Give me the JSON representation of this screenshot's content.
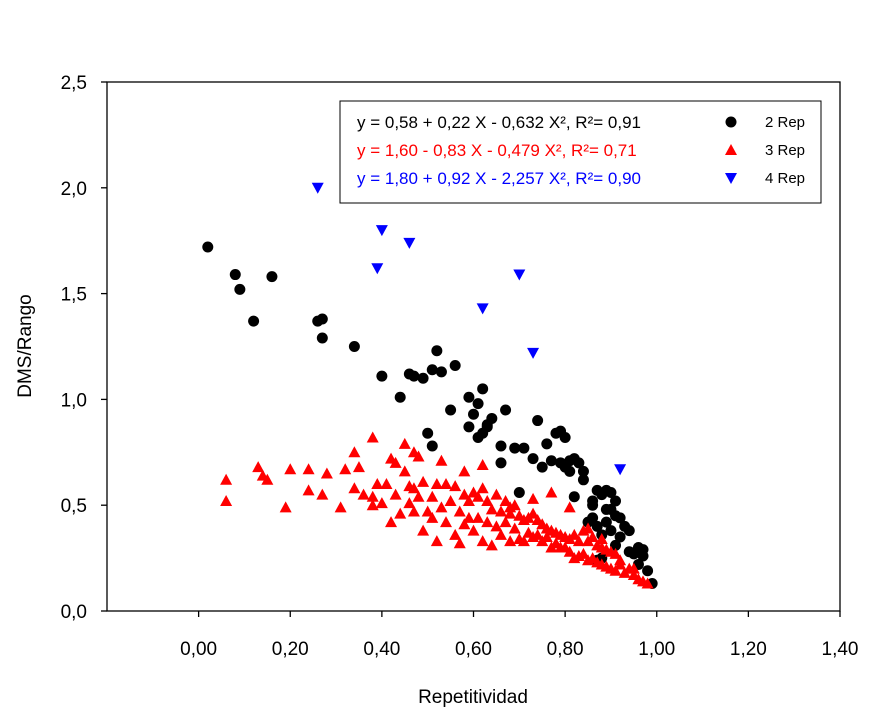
{
  "chart_data": {
    "type": "scatter",
    "xlabel": "Repetitividad",
    "ylabel": "DMS/Rango",
    "xlim": [
      -0.2,
      1.4
    ],
    "ylim": [
      0.0,
      2.5
    ],
    "x_ticks": [
      "0,00",
      "0,20",
      "0,40",
      "0,60",
      "0,80",
      "1,00",
      "1,20",
      "1,40"
    ],
    "x_tick_values": [
      0.0,
      0.2,
      0.4,
      0.6,
      0.8,
      1.0,
      1.2,
      1.4
    ],
    "y_ticks": [
      "0,0",
      "0,5",
      "1,0",
      "1,5",
      "2,0",
      "2,5"
    ],
    "y_tick_values": [
      0.0,
      0.5,
      1.0,
      1.5,
      2.0,
      2.5
    ],
    "grid": false,
    "legend_placement": "top-right",
    "series": [
      {
        "name": "2 Rep",
        "equation": "y = 0,58 + 0,22 X - 0,632 X², R²= 0,91",
        "color": "#000000",
        "marker": "circle",
        "x": [
          0.02,
          0.08,
          0.09,
          0.16,
          0.12,
          0.26,
          0.27,
          0.27,
          0.34,
          0.4,
          0.44,
          0.46,
          0.47,
          0.49,
          0.51,
          0.52,
          0.53,
          0.56,
          0.55,
          0.5,
          0.51,
          0.59,
          0.6,
          0.59,
          0.61,
          0.62,
          0.63,
          0.61,
          0.62,
          0.63,
          0.64,
          0.66,
          0.67,
          0.66,
          0.69,
          0.7,
          0.71,
          0.74,
          0.73,
          0.75,
          0.76,
          0.77,
          0.78,
          0.79,
          0.79,
          0.8,
          0.8,
          0.81,
          0.81,
          0.82,
          0.83,
          0.82,
          0.84,
          0.85,
          0.86,
          0.86,
          0.87,
          0.87,
          0.88,
          0.88,
          0.89,
          0.89,
          0.9,
          0.9,
          0.91,
          0.91,
          0.92,
          0.93,
          0.94,
          0.95,
          0.96,
          0.97,
          0.98,
          0.99,
          0.84,
          0.86,
          0.88,
          0.9,
          0.92,
          0.94,
          0.96,
          0.97,
          0.91,
          0.89,
          0.87
        ],
        "y": [
          1.72,
          1.59,
          1.52,
          1.58,
          1.37,
          1.37,
          1.29,
          1.38,
          1.25,
          1.11,
          1.01,
          1.12,
          1.11,
          1.1,
          1.14,
          1.23,
          1.13,
          1.16,
          0.95,
          0.84,
          0.78,
          1.01,
          0.93,
          0.87,
          0.98,
          1.05,
          0.87,
          0.82,
          0.84,
          0.88,
          0.91,
          0.78,
          0.95,
          0.7,
          0.77,
          0.56,
          0.77,
          0.9,
          0.72,
          0.68,
          0.79,
          0.71,
          0.84,
          0.85,
          0.7,
          0.82,
          0.68,
          0.71,
          0.66,
          0.72,
          0.7,
          0.54,
          0.66,
          0.42,
          0.52,
          0.5,
          0.57,
          0.24,
          0.55,
          0.25,
          0.57,
          0.48,
          0.56,
          0.38,
          0.52,
          0.45,
          0.44,
          0.4,
          0.38,
          0.27,
          0.3,
          0.26,
          0.19,
          0.13,
          0.62,
          0.44,
          0.36,
          0.48,
          0.35,
          0.28,
          0.22,
          0.29,
          0.31,
          0.42,
          0.4
        ]
      },
      {
        "name": "3 Rep",
        "equation": "y = 1,60 - 0,83 X - 0,479 X², R²= 0,71",
        "color": "#ff0000",
        "marker": "triangle-up",
        "x": [
          0.06,
          0.06,
          0.13,
          0.15,
          0.14,
          0.2,
          0.19,
          0.24,
          0.24,
          0.28,
          0.27,
          0.32,
          0.31,
          0.34,
          0.36,
          0.35,
          0.38,
          0.38,
          0.39,
          0.4,
          0.41,
          0.42,
          0.42,
          0.43,
          0.43,
          0.44,
          0.45,
          0.46,
          0.46,
          0.47,
          0.47,
          0.48,
          0.48,
          0.49,
          0.49,
          0.5,
          0.51,
          0.51,
          0.52,
          0.52,
          0.53,
          0.54,
          0.54,
          0.55,
          0.56,
          0.56,
          0.57,
          0.57,
          0.58,
          0.58,
          0.59,
          0.59,
          0.6,
          0.6,
          0.61,
          0.61,
          0.62,
          0.62,
          0.63,
          0.63,
          0.64,
          0.64,
          0.65,
          0.65,
          0.66,
          0.66,
          0.67,
          0.67,
          0.68,
          0.68,
          0.69,
          0.69,
          0.7,
          0.7,
          0.71,
          0.71,
          0.72,
          0.72,
          0.73,
          0.73,
          0.74,
          0.74,
          0.75,
          0.75,
          0.76,
          0.76,
          0.77,
          0.77,
          0.78,
          0.78,
          0.79,
          0.79,
          0.8,
          0.8,
          0.81,
          0.81,
          0.82,
          0.82,
          0.83,
          0.83,
          0.84,
          0.84,
          0.85,
          0.85,
          0.86,
          0.86,
          0.87,
          0.87,
          0.88,
          0.88,
          0.89,
          0.89,
          0.9,
          0.9,
          0.91,
          0.91,
          0.92,
          0.93,
          0.94,
          0.95,
          0.96,
          0.97,
          0.98,
          0.38,
          0.34,
          0.45,
          0.47,
          0.53,
          0.58,
          0.62,
          0.68,
          0.73,
          0.77,
          0.81,
          0.85,
          0.88,
          0.92,
          0.95
        ],
        "y": [
          0.62,
          0.52,
          0.68,
          0.62,
          0.64,
          0.67,
          0.49,
          0.67,
          0.57,
          0.65,
          0.55,
          0.67,
          0.49,
          0.58,
          0.55,
          0.68,
          0.5,
          0.54,
          0.6,
          0.51,
          0.6,
          0.72,
          0.42,
          0.55,
          0.7,
          0.46,
          0.66,
          0.51,
          0.59,
          0.58,
          0.47,
          0.73,
          0.54,
          0.61,
          0.38,
          0.47,
          0.54,
          0.44,
          0.6,
          0.33,
          0.49,
          0.42,
          0.6,
          0.52,
          0.36,
          0.59,
          0.47,
          0.32,
          0.66,
          0.41,
          0.52,
          0.44,
          0.56,
          0.38,
          0.54,
          0.44,
          0.58,
          0.33,
          0.52,
          0.42,
          0.48,
          0.31,
          0.55,
          0.4,
          0.47,
          0.36,
          0.52,
          0.42,
          0.46,
          0.33,
          0.5,
          0.39,
          0.45,
          0.34,
          0.43,
          0.33,
          0.44,
          0.37,
          0.46,
          0.35,
          0.43,
          0.36,
          0.41,
          0.33,
          0.39,
          0.35,
          0.38,
          0.3,
          0.37,
          0.32,
          0.36,
          0.3,
          0.35,
          0.3,
          0.34,
          0.28,
          0.36,
          0.25,
          0.33,
          0.26,
          0.38,
          0.27,
          0.33,
          0.24,
          0.35,
          0.25,
          0.31,
          0.23,
          0.3,
          0.22,
          0.29,
          0.21,
          0.28,
          0.2,
          0.27,
          0.19,
          0.22,
          0.18,
          0.2,
          0.17,
          0.15,
          0.14,
          0.13,
          0.82,
          0.75,
          0.79,
          0.75,
          0.71,
          0.55,
          0.69,
          0.49,
          0.53,
          0.56,
          0.49,
          0.39,
          0.34,
          0.24,
          0.2
        ]
      },
      {
        "name": "4 Rep",
        "equation": "y = 1,80 + 0,92 X - 2,257 X², R²= 0,90",
        "color": "#0000ff",
        "marker": "triangle-down",
        "x": [
          0.26,
          0.4,
          0.46,
          0.39,
          0.7,
          0.62,
          0.73,
          0.92
        ],
        "y": [
          2.0,
          1.8,
          1.74,
          1.62,
          1.59,
          1.43,
          1.22,
          0.67
        ]
      }
    ]
  }
}
